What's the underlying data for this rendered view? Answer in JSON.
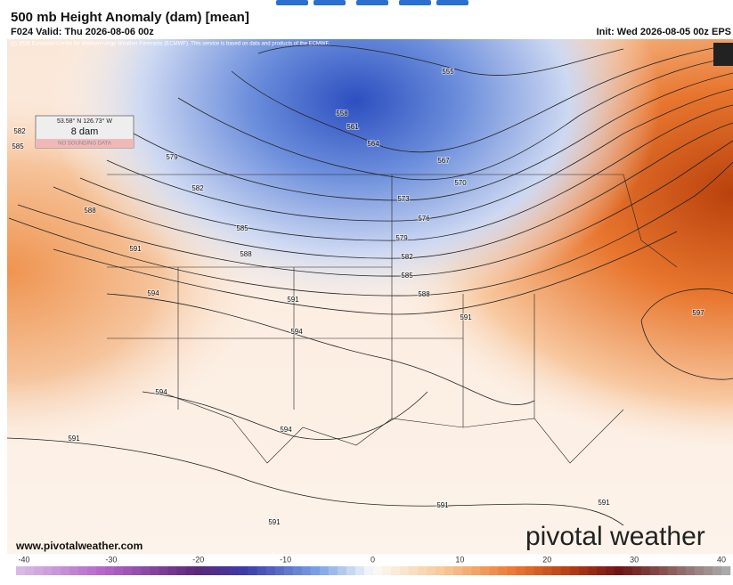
{
  "header": {
    "title": "500 mb Height Anomaly (dam) [mean]",
    "valid": "F024 Valid: Thu 2026-08-06 00z",
    "init": "Init: Wed 2026-08-05 00z EPS"
  },
  "map": {
    "copyright": "(c) 2026 European Centre for Medium-range Weather Forecasts (ECMWF). This service is based on data and products of the ECMWF.",
    "probe": {
      "location": "53.58° N 126.73° W",
      "value": "8 dam",
      "note": "NO SOUNDING DATA"
    },
    "contour_labels": [
      555,
      558,
      561,
      564,
      567,
      570,
      573,
      576,
      579,
      582,
      585,
      588,
      591,
      597,
      579,
      582,
      582,
      585,
      585,
      588,
      588,
      591,
      591,
      594,
      594,
      594,
      594,
      591,
      591,
      591,
      591
    ],
    "website": "www.pivotalweather.com",
    "logo": "pivotal weather"
  },
  "colorbar": {
    "ticks": [
      -40,
      -30,
      -20,
      -10,
      0,
      10,
      20,
      30,
      40
    ]
  }
}
